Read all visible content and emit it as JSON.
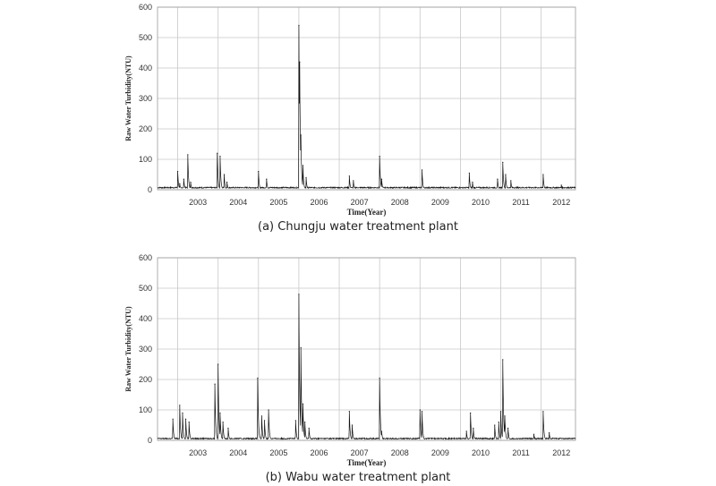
{
  "chart_data": [
    {
      "type": "line",
      "panel": "(a)",
      "caption": "(a) Chungju water treatment plant",
      "xlabel": "Time(Year)",
      "ylabel": "Raw Water Turbidity(NTU)",
      "ylim": [
        0,
        600
      ],
      "yticks": [
        0,
        100,
        200,
        300,
        400,
        500,
        600
      ],
      "xlim": [
        2002.5,
        2012.85
      ],
      "year_labels": [
        "2003",
        "2004",
        "2005",
        "2006",
        "2007",
        "2008",
        "2009",
        "2010",
        "2011",
        "2012"
      ],
      "grid": true,
      "baseline": 5,
      "peaks": [
        {
          "x": 2003.0,
          "y": 60
        },
        {
          "x": 2003.05,
          "y": 20
        },
        {
          "x": 2003.15,
          "y": 35
        },
        {
          "x": 2003.25,
          "y": 115
        },
        {
          "x": 2003.32,
          "y": 25
        },
        {
          "x": 2003.98,
          "y": 120
        },
        {
          "x": 2004.05,
          "y": 110
        },
        {
          "x": 2004.15,
          "y": 50
        },
        {
          "x": 2004.22,
          "y": 25
        },
        {
          "x": 2005.0,
          "y": 60
        },
        {
          "x": 2005.2,
          "y": 35
        },
        {
          "x": 2006.0,
          "y": 540
        },
        {
          "x": 2006.02,
          "y": 420
        },
        {
          "x": 2006.05,
          "y": 180
        },
        {
          "x": 2006.1,
          "y": 80
        },
        {
          "x": 2006.18,
          "y": 40
        },
        {
          "x": 2007.25,
          "y": 45
        },
        {
          "x": 2007.35,
          "y": 30
        },
        {
          "x": 2008.0,
          "y": 110
        },
        {
          "x": 2008.05,
          "y": 35
        },
        {
          "x": 2009.05,
          "y": 65
        },
        {
          "x": 2010.22,
          "y": 55
        },
        {
          "x": 2010.3,
          "y": 25
        },
        {
          "x": 2010.92,
          "y": 35
        },
        {
          "x": 2011.05,
          "y": 90
        },
        {
          "x": 2011.12,
          "y": 50
        },
        {
          "x": 2011.25,
          "y": 30
        },
        {
          "x": 2012.05,
          "y": 50
        },
        {
          "x": 2012.5,
          "y": 15
        }
      ]
    },
    {
      "type": "line",
      "panel": "(b)",
      "caption": "(b) Wabu water treatment plant",
      "xlabel": "Time(Year)",
      "ylabel": "Raw Water Turbidity(NTU)",
      "ylim": [
        0,
        600
      ],
      "yticks": [
        0,
        100,
        200,
        300,
        400,
        500,
        600
      ],
      "xlim": [
        2002.5,
        2012.85
      ],
      "year_labels": [
        "2003",
        "2004",
        "2005",
        "2006",
        "2007",
        "2008",
        "2009",
        "2010",
        "2011",
        "2012"
      ],
      "grid": true,
      "baseline": 4,
      "peaks": [
        {
          "x": 2002.88,
          "y": 70
        },
        {
          "x": 2003.05,
          "y": 115
        },
        {
          "x": 2003.12,
          "y": 90
        },
        {
          "x": 2003.2,
          "y": 70
        },
        {
          "x": 2003.28,
          "y": 60
        },
        {
          "x": 2003.92,
          "y": 185
        },
        {
          "x": 2004.0,
          "y": 250
        },
        {
          "x": 2004.05,
          "y": 90
        },
        {
          "x": 2004.12,
          "y": 60
        },
        {
          "x": 2004.25,
          "y": 40
        },
        {
          "x": 2004.98,
          "y": 205
        },
        {
          "x": 2005.08,
          "y": 80
        },
        {
          "x": 2005.15,
          "y": 65
        },
        {
          "x": 2005.25,
          "y": 100
        },
        {
          "x": 2005.92,
          "y": 65
        },
        {
          "x": 2006.0,
          "y": 480
        },
        {
          "x": 2006.05,
          "y": 305
        },
        {
          "x": 2006.1,
          "y": 120
        },
        {
          "x": 2006.15,
          "y": 60
        },
        {
          "x": 2006.25,
          "y": 40
        },
        {
          "x": 2007.25,
          "y": 95
        },
        {
          "x": 2007.32,
          "y": 50
        },
        {
          "x": 2008.0,
          "y": 205
        },
        {
          "x": 2008.05,
          "y": 30
        },
        {
          "x": 2009.0,
          "y": 100
        },
        {
          "x": 2009.05,
          "y": 95
        },
        {
          "x": 2010.15,
          "y": 30
        },
        {
          "x": 2010.25,
          "y": 90
        },
        {
          "x": 2010.32,
          "y": 40
        },
        {
          "x": 2010.85,
          "y": 50
        },
        {
          "x": 2010.95,
          "y": 60
        },
        {
          "x": 2011.0,
          "y": 95
        },
        {
          "x": 2011.05,
          "y": 265
        },
        {
          "x": 2011.1,
          "y": 80
        },
        {
          "x": 2011.18,
          "y": 40
        },
        {
          "x": 2011.82,
          "y": 20
        },
        {
          "x": 2012.05,
          "y": 95
        },
        {
          "x": 2012.2,
          "y": 25
        }
      ]
    }
  ]
}
